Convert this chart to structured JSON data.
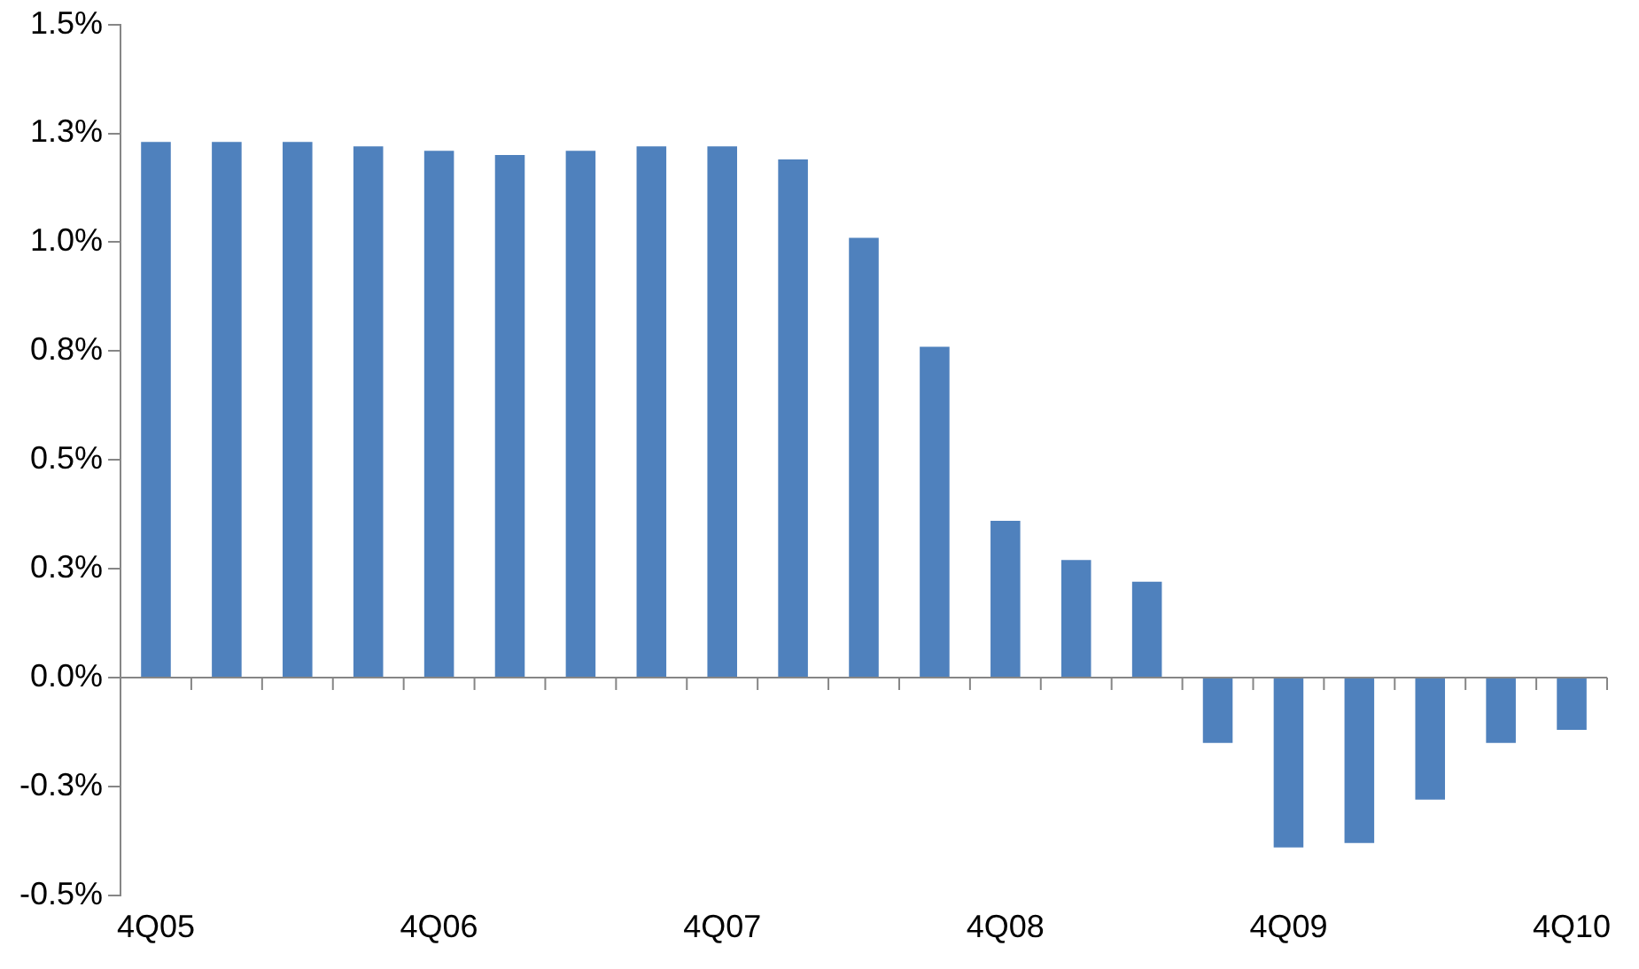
{
  "chart_data": {
    "type": "bar",
    "categories": [
      "4Q05",
      null,
      null,
      null,
      "4Q06",
      null,
      null,
      null,
      "4Q07",
      null,
      null,
      null,
      "4Q08",
      null,
      null,
      null,
      "4Q09",
      null,
      null,
      null,
      "4Q10"
    ],
    "values": [
      1.23,
      1.23,
      1.23,
      1.22,
      1.21,
      1.2,
      1.21,
      1.22,
      1.22,
      1.19,
      1.01,
      0.76,
      0.36,
      0.27,
      0.22,
      -0.15,
      -0.39,
      -0.38,
      -0.28,
      -0.15,
      -0.12
    ],
    "color": "#4f81bd",
    "ylim": [
      -0.5,
      1.5
    ],
    "yticks": [
      {
        "value": -0.5,
        "label": "-0.5%"
      },
      {
        "value": -0.25,
        "label": "-0.3%"
      },
      {
        "value": 0,
        "label": "0.0%"
      },
      {
        "value": 0.25,
        "label": "0.3%"
      },
      {
        "value": 0.5,
        "label": "0.5%"
      },
      {
        "value": 0.75,
        "label": "0.8%"
      },
      {
        "value": 1,
        "label": "1.0%"
      },
      {
        "value": 1.25,
        "label": "1.3%"
      },
      {
        "value": 1.5,
        "label": "1.5%"
      }
    ],
    "ref_lines": [
      {
        "axis": "y",
        "value": 0,
        "color": "#868686"
      }
    ],
    "grid": false,
    "legend": false
  }
}
